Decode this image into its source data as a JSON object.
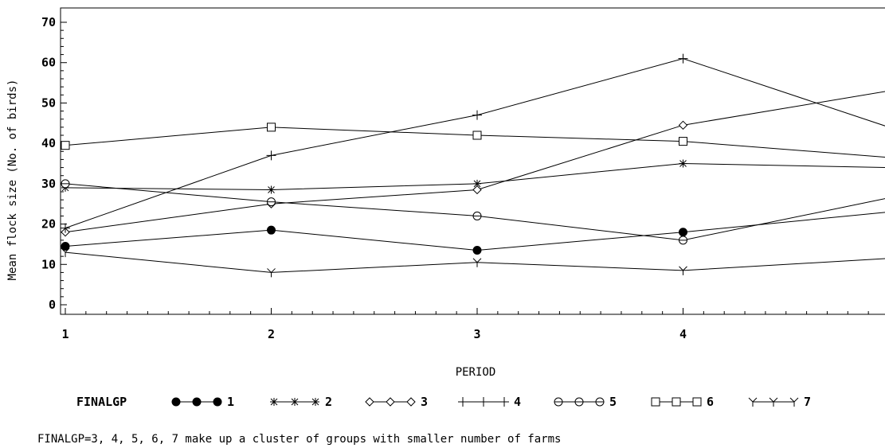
{
  "chart_data": {
    "type": "line",
    "x": [
      1,
      2,
      3,
      4,
      5
    ],
    "x_ticks": [
      "1",
      "2",
      "3",
      "4"
    ],
    "xlabel": "PERIOD",
    "ylabel": "Mean flock size (No. of birds)",
    "ylim": [
      0,
      70
    ],
    "y_ticks": [
      "0",
      "10",
      "20",
      "30",
      "40",
      "50",
      "60",
      "70"
    ],
    "legend_title": "FINALGP",
    "legend_placement": "bottom",
    "series": [
      {
        "name": "1",
        "marker": "filled-circle",
        "values": [
          14.5,
          18.5,
          13.5,
          18,
          23
        ]
      },
      {
        "name": "2",
        "marker": "asterisk",
        "values": [
          29,
          28.5,
          30,
          35,
          34
        ]
      },
      {
        "name": "3",
        "marker": "diamond",
        "values": [
          18,
          25,
          28.5,
          44.5,
          53
        ]
      },
      {
        "name": "4",
        "marker": "plus",
        "values": [
          19,
          37,
          47,
          61,
          44
        ]
      },
      {
        "name": "5",
        "marker": "circle",
        "values": [
          30,
          25.5,
          22,
          16,
          26.5
        ]
      },
      {
        "name": "6",
        "marker": "square",
        "values": [
          39.5,
          44,
          42,
          40.5,
          36.5
        ]
      },
      {
        "name": "7",
        "marker": "y",
        "values": [
          13,
          8,
          10.5,
          8.5,
          11.5
        ]
      }
    ],
    "annotation": "FINALGP=3, 4, 5, 6, 7 make up a cluster of groups with smaller number of farms",
    "grid": false
  }
}
